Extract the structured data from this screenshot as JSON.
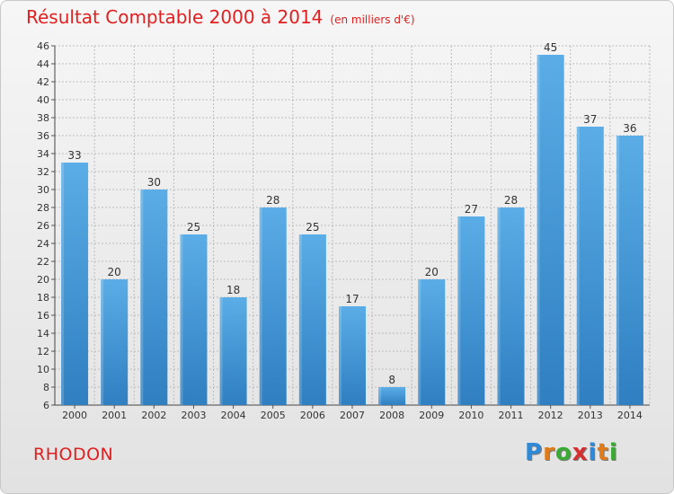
{
  "title": "Résultat Comptable 2000 à 2014",
  "subtitle": "(en milliers d'€)",
  "commune": "RHODON",
  "logo": {
    "text": "Proxiti",
    "letter_colors": [
      "#2e8ad8",
      "#e07b1a",
      "#3aaa35",
      "#d62f2f",
      "#2e8ad8",
      "#e07b1a",
      "#3aaa35"
    ]
  },
  "colors": {
    "title": "#e02020",
    "bar_light": "#5aade6",
    "bar_dark": "#2f7fc1",
    "grid": "#bcbcbc"
  },
  "chart_data": {
    "type": "bar",
    "categories": [
      "2000",
      "2001",
      "2002",
      "2003",
      "2004",
      "2005",
      "2006",
      "2007",
      "2008",
      "2009",
      "2010",
      "2011",
      "2012",
      "2013",
      "2014"
    ],
    "values": [
      33,
      20,
      30,
      25,
      18,
      28,
      25,
      17,
      8,
      20,
      27,
      28,
      45,
      37,
      36
    ],
    "ylim": [
      6,
      46
    ],
    "yticks": [
      6,
      8,
      10,
      12,
      14,
      16,
      18,
      20,
      22,
      24,
      26,
      28,
      30,
      32,
      34,
      36,
      38,
      40,
      42,
      44,
      46
    ],
    "grid": true,
    "data_labels": true
  }
}
